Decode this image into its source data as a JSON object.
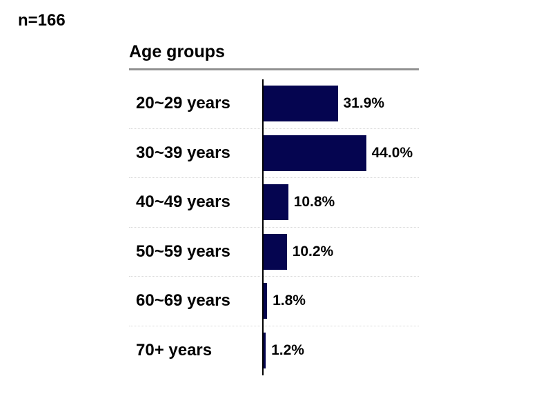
{
  "page": {
    "sample_size_label": "n=166"
  },
  "chart_data": {
    "type": "bar",
    "orientation": "horizontal",
    "title": "Age groups",
    "categories": [
      "20~29 years",
      "30~39 years",
      "40~49 years",
      "50~59 years",
      "60~69 years",
      "70+ years"
    ],
    "values": [
      31.9,
      44.0,
      10.8,
      10.2,
      1.8,
      1.2
    ],
    "value_labels": [
      "31.9%",
      "44.0%",
      "10.8%",
      "10.2%",
      "1.8%",
      "1.2%"
    ],
    "xlabel": "",
    "ylabel": "",
    "xlim": [
      0,
      50
    ],
    "grid": "dotted row separators",
    "legend": "none",
    "data_labels_position": "outside-end",
    "bar_color": "#050550",
    "axis_line_color": "#000000",
    "title_rule_color": "#919191"
  }
}
